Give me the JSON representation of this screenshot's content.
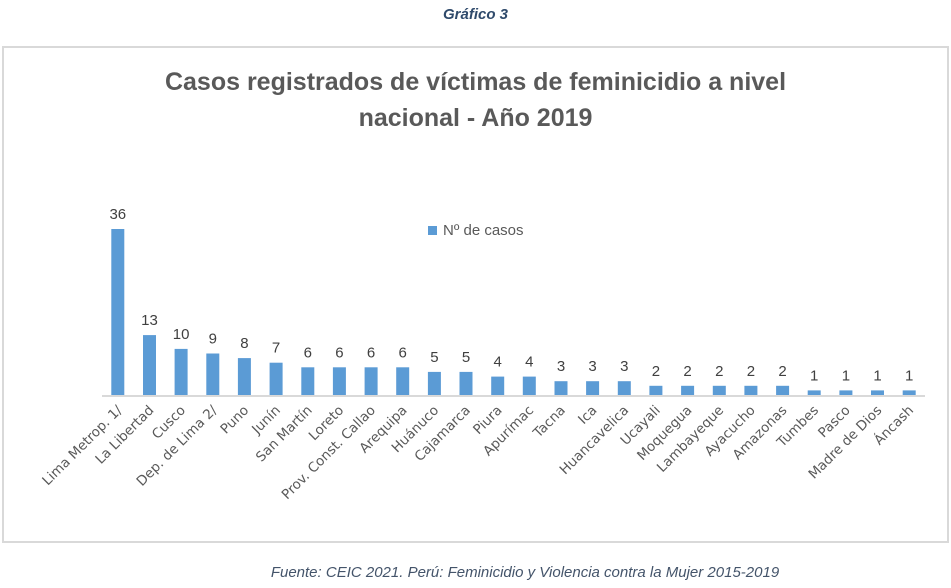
{
  "caption": "Gráfico 3",
  "source": "Fuente: CEIC 2021. Perú: Feminicidio y Violencia contra la Mujer 2015-2019",
  "chart_data": {
    "type": "bar",
    "title": "Casos registrados de víctimas de feminicidio a nivel nacional - Año 2019",
    "title_lines": [
      "Casos registrados de víctimas de feminicidio a nivel",
      "nacional - Año 2019"
    ],
    "xlabel": "",
    "ylabel": "",
    "ylim": [
      0,
      36
    ],
    "grid": false,
    "legend": {
      "position": "top-center",
      "entries": [
        "Nº de casos"
      ]
    },
    "bar_color": "#5b9bd5",
    "categories": [
      "Lima Metrop. 1/",
      "La Libertad",
      "Cusco",
      "Dep. de Lima 2/",
      "Puno",
      "Junín",
      "San Martín",
      "Loreto",
      "Prov. Const. Callao",
      "Arequipa",
      "Huánuco",
      "Cajamarca",
      "Piura",
      "Apurímac",
      "Tacna",
      "Ica",
      "Huancavelica",
      "Ucayali",
      "Moquegua",
      "Lambayeque",
      "Ayacucho",
      "Amazonas",
      "Tumbes",
      "Pasco",
      "Madre de Dios",
      "Áncash"
    ],
    "series": [
      {
        "name": "Nº de casos",
        "values": [
          36,
          13,
          10,
          9,
          8,
          7,
          6,
          6,
          6,
          6,
          5,
          5,
          4,
          4,
          3,
          3,
          3,
          2,
          2,
          2,
          2,
          2,
          1,
          1,
          1,
          1
        ]
      }
    ]
  }
}
